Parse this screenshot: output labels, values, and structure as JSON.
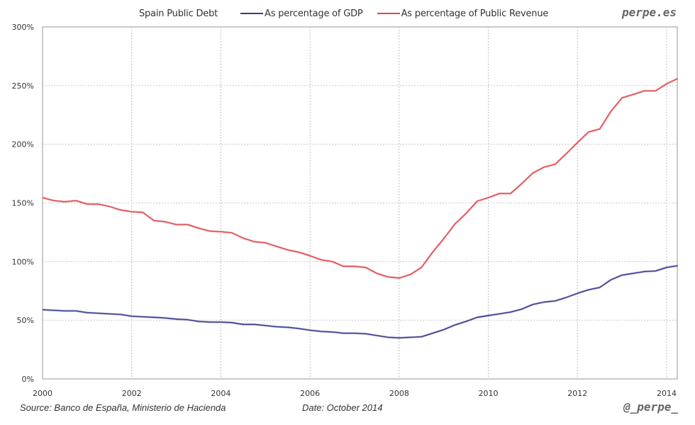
{
  "chart_data": {
    "type": "line",
    "title": "Spain Public Debt",
    "xlabel": "",
    "ylabel": "",
    "xlim": [
      2000,
      2014.25
    ],
    "ylim": [
      0,
      300
    ],
    "grid": true,
    "legend_position": "top",
    "x_ticks": [
      2000,
      2002,
      2004,
      2006,
      2008,
      2010,
      2012,
      2014
    ],
    "x_tick_labels": [
      "2000",
      "2002",
      "2004",
      "2006",
      "2008",
      "2010",
      "2012",
      "2014"
    ],
    "y_ticks": [
      0,
      50,
      100,
      150,
      200,
      250,
      300
    ],
    "y_tick_labels": [
      "0%",
      "50%",
      "100%",
      "150%",
      "200%",
      "250%",
      "300%"
    ],
    "x": [
      2000.0,
      2000.25,
      2000.5,
      2000.75,
      2001.0,
      2001.25,
      2001.5,
      2001.75,
      2002.0,
      2002.25,
      2002.5,
      2002.75,
      2003.0,
      2003.25,
      2003.5,
      2003.75,
      2004.0,
      2004.25,
      2004.5,
      2004.75,
      2005.0,
      2005.25,
      2005.5,
      2005.75,
      2006.0,
      2006.25,
      2006.5,
      2006.75,
      2007.0,
      2007.25,
      2007.5,
      2007.75,
      2008.0,
      2008.25,
      2008.5,
      2008.75,
      2009.0,
      2009.25,
      2009.5,
      2009.75,
      2010.0,
      2010.25,
      2010.5,
      2010.75,
      2011.0,
      2011.25,
      2011.5,
      2011.75,
      2012.0,
      2012.25,
      2012.5,
      2012.75,
      2013.0,
      2013.25,
      2013.5,
      2013.75,
      2014.0,
      2014.25
    ],
    "series": [
      {
        "name": "As percentage of GDP",
        "color": "#3a3a8c",
        "values": [
          59,
          58.5,
          58,
          58,
          56.5,
          56,
          55.5,
          55,
          53.5,
          53,
          52.5,
          52,
          51,
          50.5,
          49,
          48.5,
          48.5,
          48,
          46.5,
          46.5,
          45.5,
          44.5,
          44,
          43,
          41.5,
          40.5,
          40,
          39,
          39,
          38.5,
          37,
          35.5,
          35,
          35.5,
          36,
          39,
          42,
          46,
          49,
          52.5,
          54,
          55.5,
          57,
          59.5,
          63.5,
          65.5,
          66.5,
          69.5,
          73,
          76,
          78,
          84.5,
          88.5,
          90,
          91.5,
          92,
          95,
          96.5
        ]
      },
      {
        "name": "As percentage of Public Revenue",
        "color": "#e0474c",
        "values": [
          154.5,
          152,
          151,
          152,
          149,
          149,
          147,
          144,
          142.5,
          142,
          135,
          134,
          131.5,
          131.5,
          128.5,
          126,
          125.5,
          124.5,
          120,
          117,
          116,
          113,
          110,
          108,
          105,
          101.5,
          100,
          96,
          96,
          95,
          90,
          87,
          86,
          89,
          95,
          108,
          119.5,
          132,
          141,
          151.5,
          154.5,
          158,
          158,
          166.5,
          175.5,
          180.5,
          183,
          192,
          201.5,
          210.5,
          213,
          228,
          239.5,
          242.5,
          245.5,
          245.5,
          251.5,
          256
        ]
      }
    ]
  },
  "brand": "perpe.es",
  "footer": {
    "source": "Source: Banco de España, Ministerio de Hacienda",
    "date": "Date: October 2014",
    "handle": "@_perpe_"
  }
}
